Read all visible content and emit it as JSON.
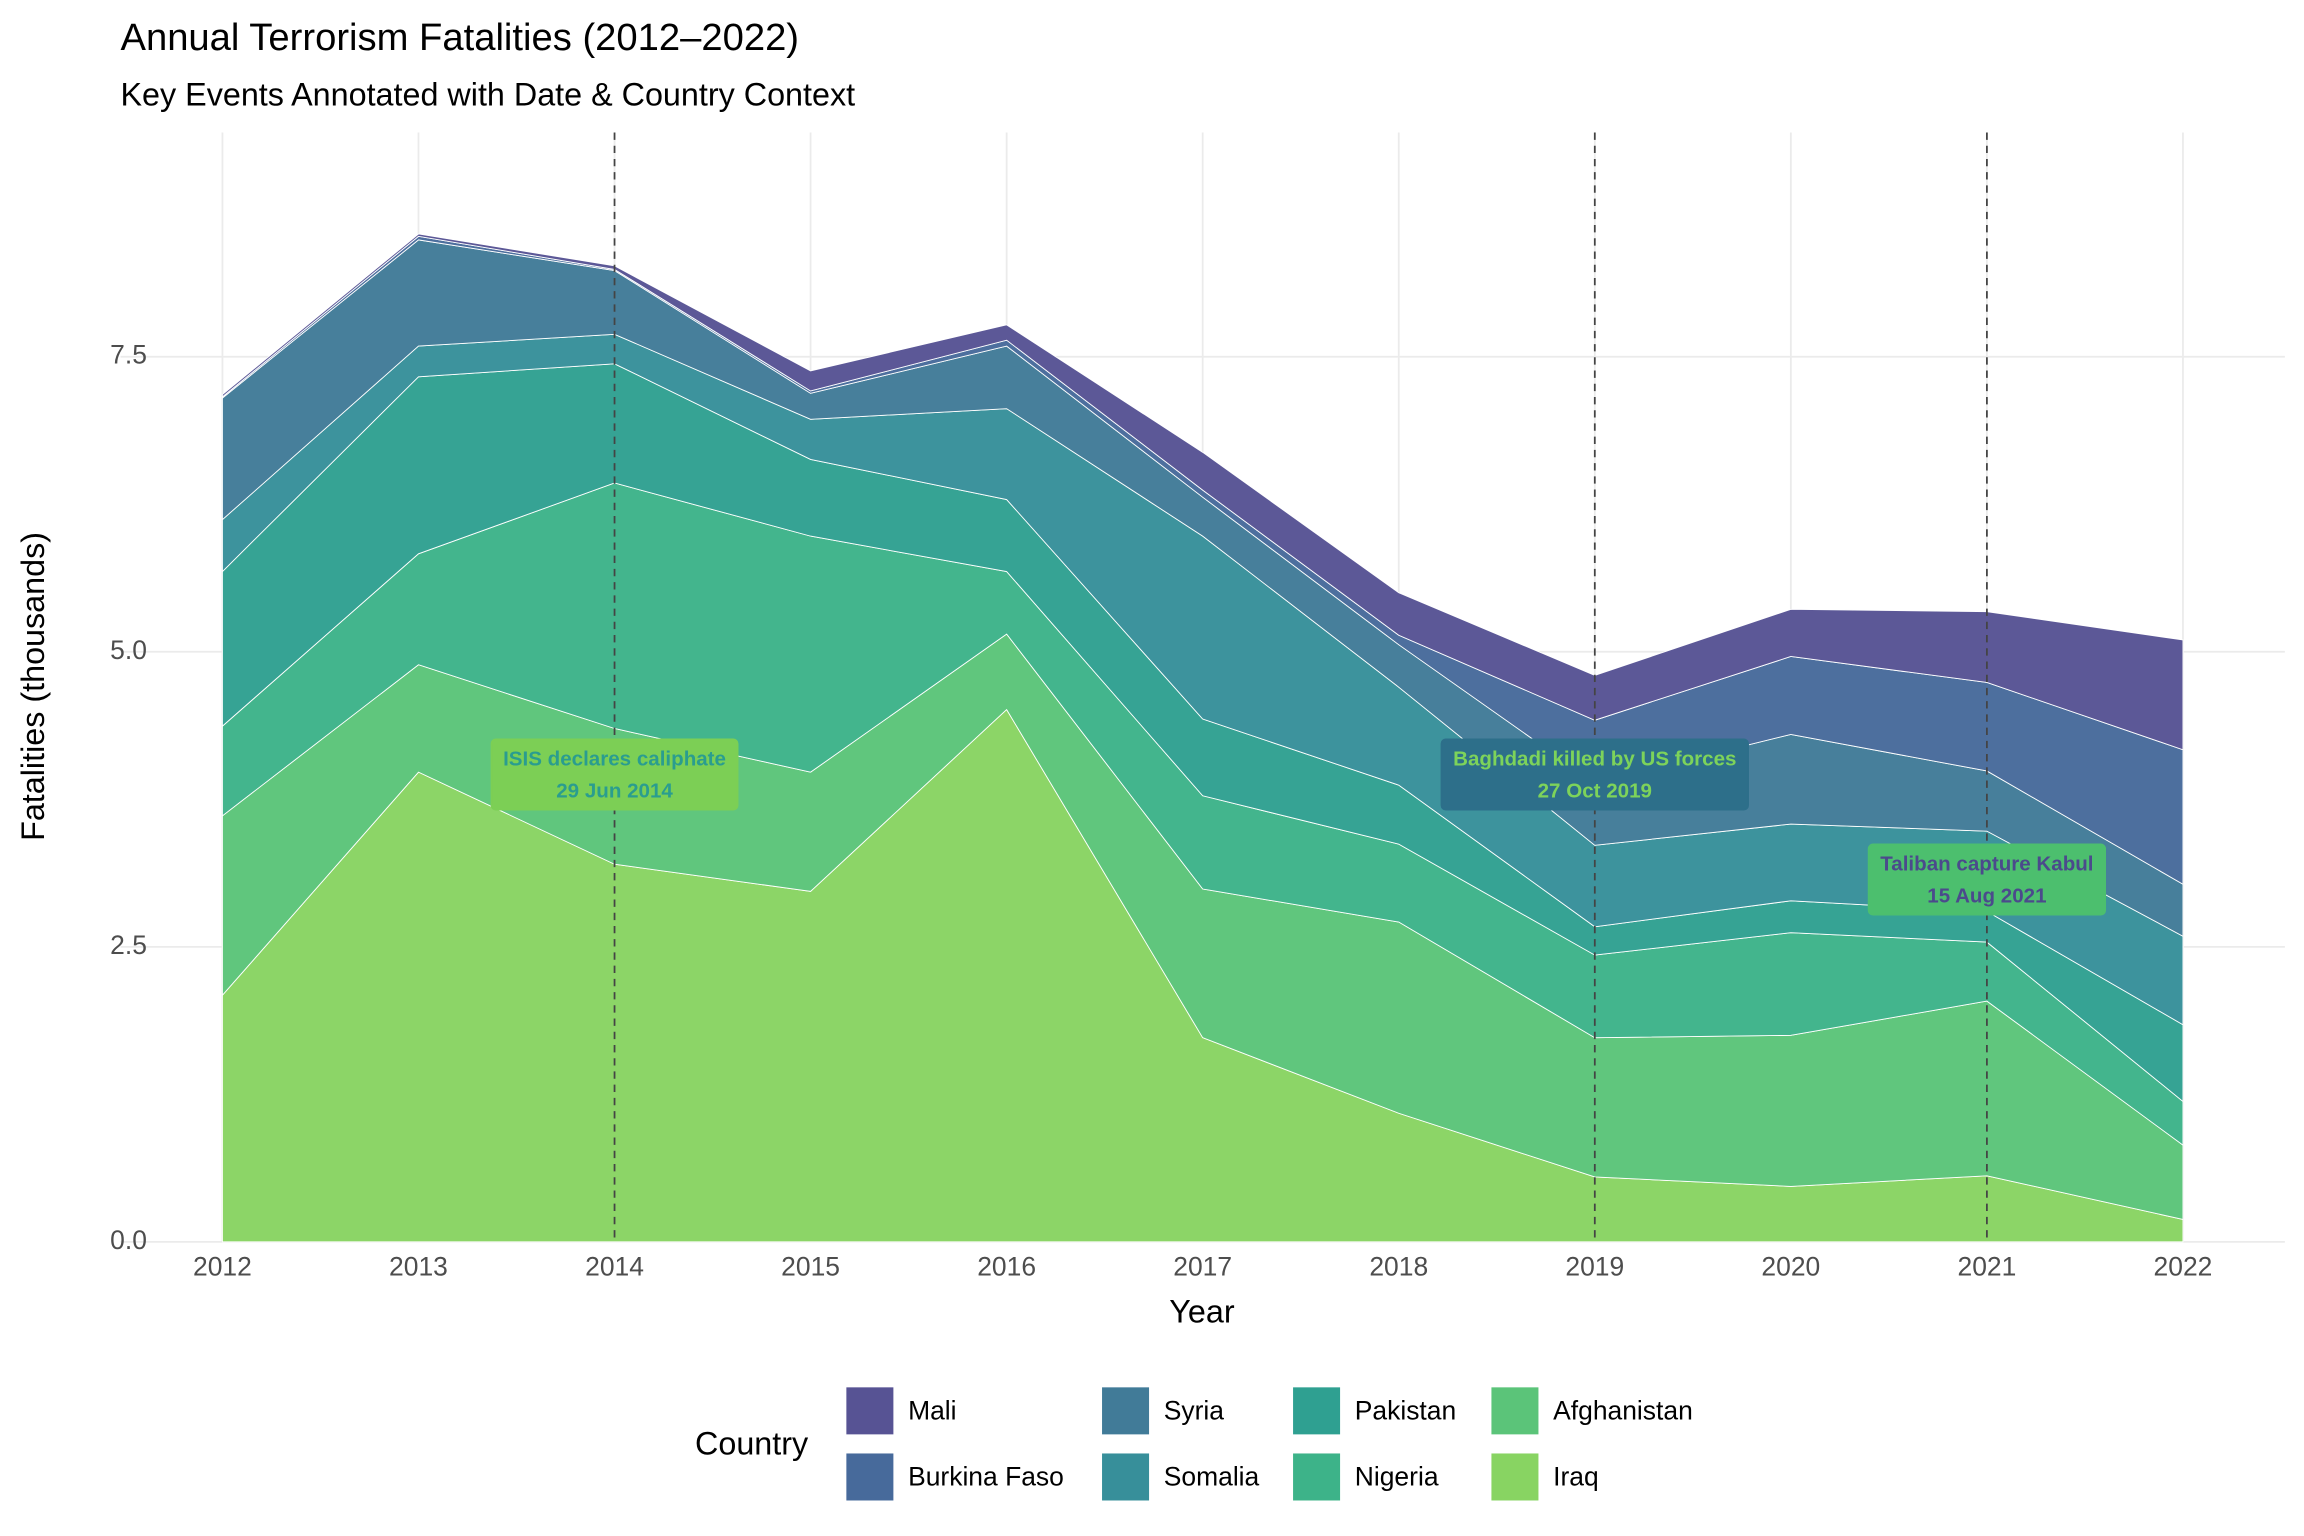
{
  "chart_data": {
    "type": "stacked_area",
    "title": "Annual Terrorism Fatalities (2012–2022)",
    "subtitle": "Key Events Annotated with Date & Country Context",
    "x_label": "Year",
    "y_label": "Fatalities (thousands)",
    "x": [
      2012,
      2013,
      2014,
      2015,
      2016,
      2017,
      2018,
      2019,
      2020,
      2021,
      2022
    ],
    "xlim": [
      2011.48,
      2022.52
    ],
    "xticks": [
      2012,
      2013,
      2014,
      2015,
      2016,
      2017,
      2018,
      2019,
      2020,
      2021,
      2022
    ],
    "ylim": [
      0,
      9.4
    ],
    "yticks": [
      {
        "value": 0,
        "label": "0.0"
      },
      2.5,
      {
        "value": 5,
        "label": "5.0"
      },
      7.5
    ],
    "grid": true,
    "legend_title": "Country",
    "legend_position": "bottom",
    "series": [
      {
        "name": "Mali",
        "color": "#575394",
        "values": [
          0.02,
          0.02,
          0.03,
          0.17,
          0.13,
          0.32,
          0.36,
          0.38,
          0.4,
          0.6,
          0.93
        ]
      },
      {
        "name": "Burkina Faso",
        "color": "#476a9b",
        "values": [
          0.01,
          0.03,
          0.01,
          0.02,
          0.05,
          0.06,
          0.08,
          0.53,
          0.66,
          0.75,
          1.14
        ]
      },
      {
        "name": "Syria",
        "color": "#417b98",
        "values": [
          1.03,
          0.9,
          0.54,
          0.22,
          0.53,
          0.33,
          0.36,
          0.53,
          0.76,
          0.51,
          0.44
        ]
      },
      {
        "name": "Somalia",
        "color": "#378f9a",
        "values": [
          0.44,
          0.26,
          0.25,
          0.34,
          0.77,
          1.55,
          0.83,
          0.69,
          0.65,
          0.68,
          0.75
        ]
      },
      {
        "name": "Pakistan",
        "color": "#2fa091",
        "values": [
          1.31,
          1.5,
          1.01,
          0.65,
          0.61,
          0.65,
          0.5,
          0.24,
          0.27,
          0.26,
          0.65
        ]
      },
      {
        "name": "Nigeria",
        "color": "#3db389",
        "values": [
          0.76,
          0.94,
          2.08,
          2.0,
          0.53,
          0.79,
          0.66,
          0.7,
          0.87,
          0.5,
          0.37
        ]
      },
      {
        "name": "Afghanistan",
        "color": "#5bc479",
        "values": [
          1.52,
          0.91,
          1.15,
          1.01,
          0.64,
          1.26,
          1.62,
          1.18,
          1.28,
          1.48,
          0.63
        ]
      },
      {
        "name": "Iraq",
        "color": "#88d462",
        "values": [
          2.09,
          3.98,
          3.2,
          2.97,
          4.51,
          1.73,
          1.09,
          0.55,
          0.47,
          0.56,
          0.19
        ]
      }
    ],
    "annotations": [
      {
        "x": 2014,
        "y": 3.96,
        "label": "ISIS declares caliphate",
        "date": "29 Jun 2014",
        "color": "#7ccf55",
        "text_color": "#2a9d8f"
      },
      {
        "x": 2019,
        "y": 3.96,
        "label": "Baghdadi killed by US forces",
        "date": "27 Oct 2019",
        "color": "#2d6f8a",
        "text_color": "#7dd35a"
      },
      {
        "x": 2021,
        "y": 3.07,
        "label": "Taliban capture Kabul",
        "date": "15 Aug 2021",
        "color": "#4cbf6e",
        "text_color": "#4b4a8c"
      }
    ]
  }
}
